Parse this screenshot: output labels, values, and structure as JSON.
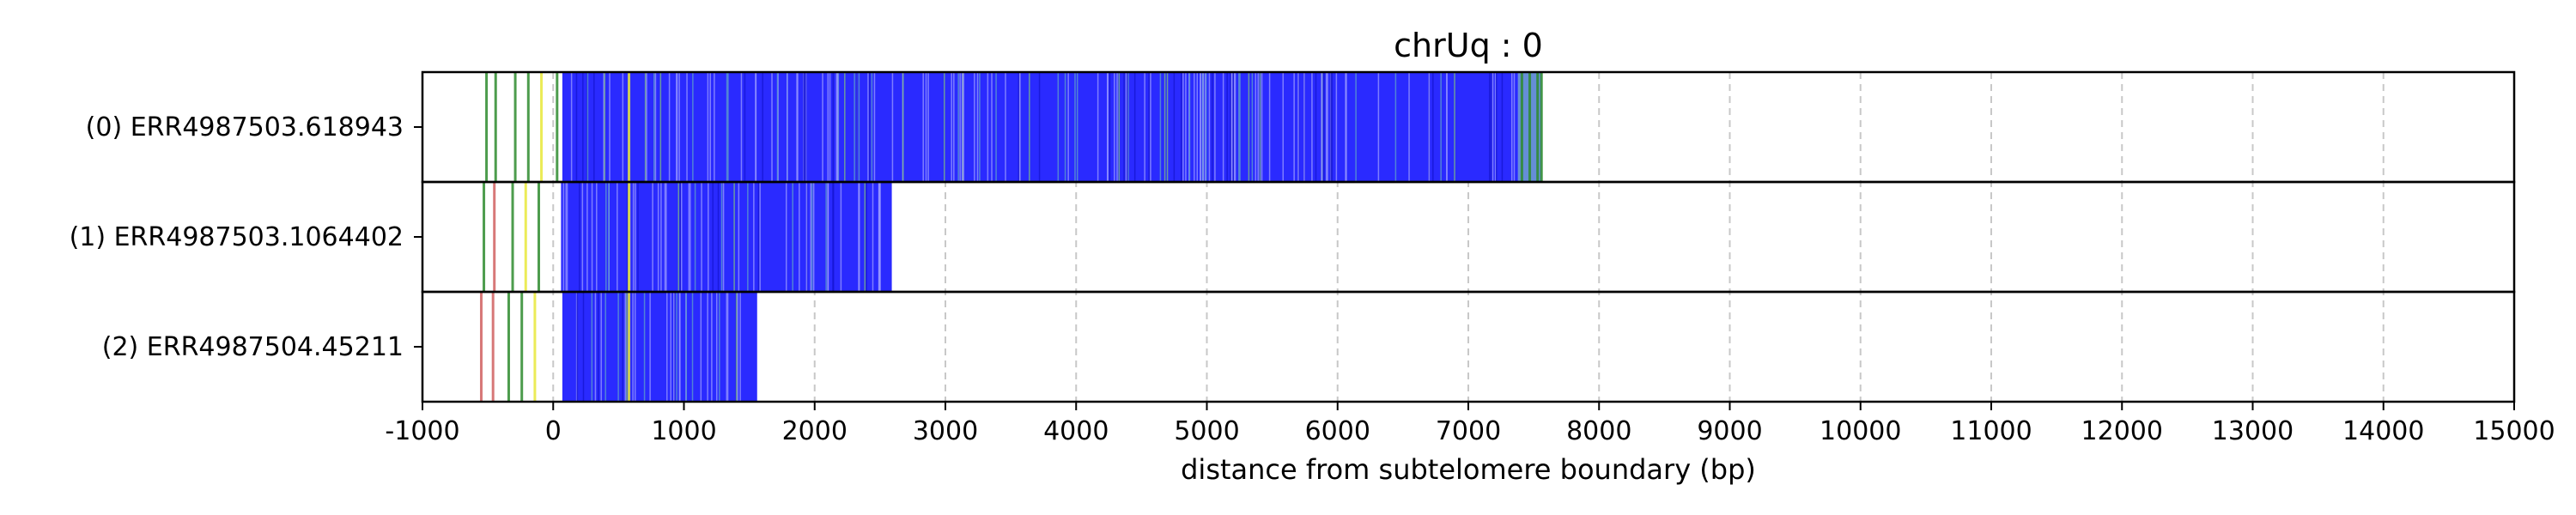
{
  "chart_data": {
    "type": "heatmap",
    "title": "chrUq : 0",
    "xlabel": "distance from subtelomere boundary (bp)",
    "ylabel": "",
    "xlim": [
      -1000,
      15000
    ],
    "xticks": [
      -1000,
      0,
      1000,
      2000,
      3000,
      4000,
      5000,
      6000,
      7000,
      8000,
      9000,
      10000,
      11000,
      12000,
      13000,
      14000,
      15000
    ],
    "grid": "x-dashed",
    "colors": {
      "repeat": "#2a2aff",
      "alt_green": "#2e8b2e",
      "alt_yellow": "#e8e83a",
      "alt_red": "#d06060",
      "grid": "#c8c8c8"
    },
    "reads": [
      {
        "label": "(0) ERR4987503.618943",
        "repeat_start": 70,
        "repeat_end": 7380,
        "extent_end": 7560,
        "sparse_marks": [
          {
            "x": -520,
            "color": "alt_green"
          },
          {
            "x": -450,
            "color": "alt_green"
          },
          {
            "x": -300,
            "color": "alt_green"
          },
          {
            "x": -200,
            "color": "alt_green"
          },
          {
            "x": -100,
            "color": "alt_yellow"
          },
          {
            "x": 20,
            "color": "alt_green"
          },
          {
            "x": 570,
            "color": "alt_yellow"
          },
          {
            "x": 7400,
            "color": "alt_green"
          },
          {
            "x": 7460,
            "color": "alt_green"
          },
          {
            "x": 7520,
            "color": "alt_green"
          },
          {
            "x": 7550,
            "color": "alt_green"
          }
        ]
      },
      {
        "label": "(1) ERR4987503.1064402",
        "repeat_start": 60,
        "repeat_end": 2590,
        "extent_end": 2590,
        "sparse_marks": [
          {
            "x": -540,
            "color": "alt_green"
          },
          {
            "x": -460,
            "color": "alt_red"
          },
          {
            "x": -320,
            "color": "alt_green"
          },
          {
            "x": -220,
            "color": "alt_yellow"
          },
          {
            "x": -120,
            "color": "alt_green"
          },
          {
            "x": 570,
            "color": "alt_yellow"
          }
        ]
      },
      {
        "label": "(2) ERR4987504.45211",
        "repeat_start": 70,
        "repeat_end": 1560,
        "extent_end": 1560,
        "sparse_marks": [
          {
            "x": -560,
            "color": "alt_red"
          },
          {
            "x": -470,
            "color": "alt_red"
          },
          {
            "x": -350,
            "color": "alt_green"
          },
          {
            "x": -250,
            "color": "alt_green"
          },
          {
            "x": -150,
            "color": "alt_yellow"
          },
          {
            "x": 570,
            "color": "alt_yellow"
          }
        ]
      }
    ]
  }
}
